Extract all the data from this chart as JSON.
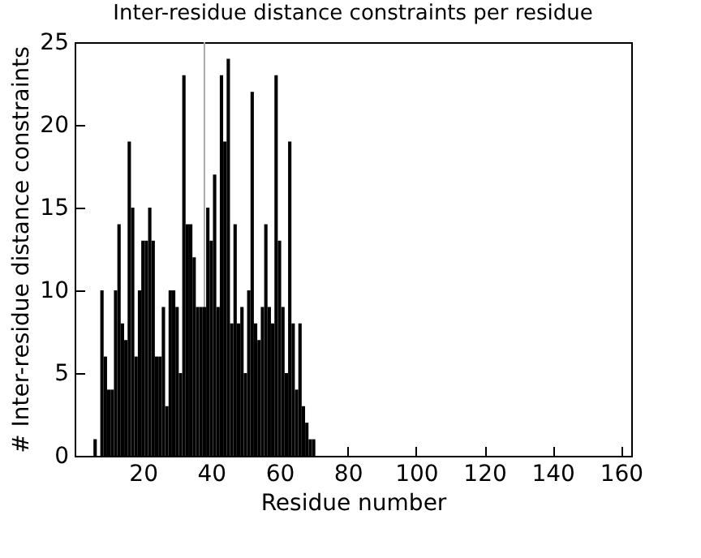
{
  "chart_data": {
    "type": "bar",
    "title": "Inter-residue distance constraints per residue",
    "xlabel": "Residue number",
    "ylabel": "# Inter-residue distance constraints",
    "x": [
      6,
      7,
      8,
      9,
      10,
      11,
      12,
      13,
      14,
      15,
      16,
      17,
      18,
      19,
      20,
      21,
      22,
      23,
      24,
      25,
      26,
      27,
      28,
      29,
      30,
      31,
      32,
      33,
      34,
      35,
      36,
      37,
      38,
      39,
      40,
      41,
      42,
      43,
      44,
      45,
      46,
      47,
      48,
      49,
      50,
      51,
      52,
      53,
      54,
      55,
      56,
      57,
      58,
      59,
      60,
      61,
      62,
      63,
      64,
      65,
      66,
      67,
      68,
      69,
      70
    ],
    "series": [
      {
        "color": "#000000",
        "values": [
          1,
          0,
          10,
          6,
          4,
          4,
          10,
          14,
          8,
          7,
          19,
          15,
          6,
          10,
          13,
          13,
          15,
          13,
          6,
          6,
          9,
          3,
          10,
          10,
          9,
          5,
          23,
          14,
          14,
          12,
          9,
          9,
          9,
          15,
          13,
          17,
          9,
          23,
          19,
          24,
          8,
          14,
          8,
          9,
          5,
          10,
          22,
          8,
          7,
          9,
          14,
          9,
          8,
          23,
          13,
          9,
          5,
          19,
          8,
          4,
          8,
          3,
          2,
          1,
          1
        ]
      }
    ],
    "xlim": [
      0,
      163
    ],
    "xticks": [
      20,
      40,
      60,
      80,
      100,
      120,
      140,
      160
    ],
    "ylim": [
      0,
      25
    ],
    "yticks": [
      0,
      5,
      10,
      15,
      20,
      25
    ],
    "ref_lines": [
      {
        "axis": "x",
        "value": 38,
        "color": "#aaaaaa"
      }
    ],
    "grid": false
  }
}
